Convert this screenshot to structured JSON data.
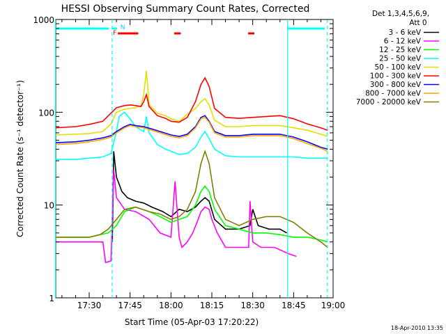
{
  "chart_data": {
    "type": "line",
    "title": "HESSI Observing Summary Count Rates, Corrected",
    "xlabel": "Start Time (05-Apr-03 17:20:22)",
    "ylabel": "Corrected Count Rate (s⁻¹ detector⁻¹)",
    "yscale": "log",
    "ylim": [
      1,
      1000
    ],
    "xlim_minutes": [
      17.3,
      118.0
    ],
    "x_units": "minutes after 17:20:22",
    "x_ticks": [
      {
        "minute": 30,
        "label": "17:30"
      },
      {
        "minute": 45,
        "label": "17:45"
      },
      {
        "minute": 60,
        "label": "18:00"
      },
      {
        "minute": 75,
        "label": "18:15"
      },
      {
        "minute": 90,
        "label": "18:30"
      },
      {
        "minute": 105,
        "label": "18:45"
      },
      {
        "minute": 120,
        "label": "19:00"
      }
    ],
    "y_ticks": [
      {
        "value": 1,
        "label": "1"
      },
      {
        "value": 10,
        "label": "10"
      },
      {
        "value": 100,
        "label": "100"
      },
      {
        "value": 1000,
        "label": "1000"
      }
    ],
    "legend_header": [
      "Det 1,3,4,5,6,9,",
      "Att 0"
    ],
    "legend_position": "right",
    "footer": "18-Apr-2010 13:35",
    "top_markers": [
      {
        "label": "F",
        "color": "#ff0000",
        "minute": 39.4
      },
      {
        "label": "N",
        "color": "#00d0ff",
        "minute": 42.3
      }
    ],
    "flags": {
      "red_bars": [
        [
          40.5,
          48.0
        ],
        [
          61.2,
          63.6
        ],
        [
          88.3,
          90.6
        ]
      ],
      "cyan_bars": [
        [
          17.3,
          37.2
        ],
        [
          38.3,
          40.2
        ],
        [
          102.8,
          117.5
        ]
      ]
    },
    "vlines": [
      {
        "minute": 17.6,
        "style": "solid",
        "color": "#00ffff"
      },
      {
        "minute": 38.4,
        "style": "dashed",
        "color": "#00ffff"
      },
      {
        "minute": 102.8,
        "style": "solid",
        "color": "#00ffff"
      },
      {
        "minute": 117.4,
        "style": "dashed",
        "color": "#00ffff"
      }
    ],
    "series": [
      {
        "name": "3 - 6 keV",
        "color": "#000000",
        "x": [
          38.5,
          39,
          40,
          42,
          44,
          47,
          50,
          53,
          57,
          60,
          63,
          66,
          69,
          71,
          72.5,
          74,
          76,
          80,
          85,
          89,
          90,
          92,
          96,
          100,
          102.5
        ],
        "y": [
          4,
          38,
          20,
          14,
          12,
          11,
          10.5,
          9.5,
          8.5,
          7.5,
          9,
          8.5,
          9.5,
          11,
          12,
          11,
          7,
          5.5,
          5.5,
          6,
          9,
          6,
          5.5,
          5.5,
          5
        ]
      },
      {
        "name": "6 - 12 keV",
        "color": "#ff00ff",
        "x": [
          17.5,
          35,
          36,
          38,
          39,
          40,
          43,
          47,
          52,
          56,
          60,
          61.5,
          63,
          64,
          66,
          68,
          70,
          71,
          72.5,
          74,
          75,
          77,
          80,
          85,
          88.5,
          89,
          90,
          93,
          98,
          103,
          106
        ],
        "y": [
          4,
          4,
          2.4,
          2.5,
          24,
          12,
          9,
          8.5,
          7,
          5,
          4.5,
          18,
          4.5,
          3.5,
          4,
          5,
          7,
          8.5,
          9.5,
          9,
          7,
          5,
          3.5,
          3.5,
          3.5,
          11,
          4,
          3.5,
          3.5,
          3,
          2.8
        ]
      },
      {
        "name": "12 - 25 keV",
        "color": "#00ff00",
        "x": [
          17.5,
          30,
          34,
          37,
          40,
          43,
          47,
          52,
          56,
          60,
          63,
          66,
          69,
          71,
          72.5,
          74,
          76,
          80,
          85,
          90,
          95,
          100,
          105,
          110,
          115,
          117.5
        ],
        "y": [
          4.5,
          4.5,
          4.8,
          5,
          6,
          8.5,
          9.5,
          8.5,
          7.5,
          6.5,
          7,
          7.5,
          10,
          14,
          16,
          14,
          9,
          6,
          5.5,
          5,
          5,
          4.8,
          4.5,
          4.5,
          4.2,
          4
        ]
      },
      {
        "name": "25 - 50 keV",
        "color": "#00ffff",
        "x": [
          17.5,
          25,
          30,
          35,
          38,
          40,
          41,
          42,
          43,
          45,
          47,
          50,
          51,
          52,
          55,
          58,
          60,
          63,
          66,
          69,
          71,
          72.5,
          74,
          76,
          80,
          85,
          90,
          95,
          100,
          105,
          110,
          115,
          117.5
        ],
        "y": [
          31,
          31,
          32,
          33,
          36,
          62,
          90,
          95,
          100,
          85,
          70,
          62,
          90,
          60,
          45,
          40,
          38,
          35,
          36,
          42,
          54,
          62,
          52,
          40,
          34,
          33,
          33,
          33,
          33,
          33,
          32,
          32,
          32
        ]
      },
      {
        "name": "50 - 100 keV",
        "color": "#e0e000",
        "x": [
          17.5,
          25,
          30,
          35,
          38,
          40,
          43,
          45,
          47,
          49,
          50,
          51,
          52,
          55,
          58,
          60,
          63,
          66,
          69,
          71,
          72.5,
          74,
          76,
          80,
          85,
          90,
          95,
          100,
          105,
          110,
          115,
          117.5
        ],
        "y": [
          57,
          58,
          59,
          62,
          75,
          100,
          108,
          110,
          112,
          118,
          155,
          280,
          120,
          98,
          92,
          85,
          80,
          95,
          110,
          130,
          140,
          120,
          82,
          70,
          70,
          72,
          72,
          72,
          68,
          64,
          58,
          55
        ]
      },
      {
        "name": "100 - 300 keV",
        "color": "#ff0000",
        "x": [
          17.5,
          25,
          30,
          35,
          38,
          40,
          43,
          45,
          47,
          49,
          50,
          51,
          52,
          55,
          58,
          60,
          63,
          66,
          69,
          71,
          72.5,
          74,
          76,
          80,
          85,
          90,
          95,
          100,
          105,
          110,
          115,
          117.5
        ],
        "y": [
          68,
          70,
          74,
          80,
          98,
          112,
          118,
          120,
          118,
          115,
          130,
          155,
          115,
          92,
          86,
          80,
          78,
          88,
          130,
          200,
          235,
          190,
          110,
          88,
          86,
          88,
          90,
          92,
          85,
          75,
          68,
          64
        ]
      },
      {
        "name": "300 - 800 keV",
        "color": "#0000ff",
        "x": [
          17.5,
          25,
          30,
          35,
          38,
          40,
          43,
          45,
          47,
          50,
          53,
          56,
          60,
          63,
          66,
          69,
          71,
          72.5,
          74,
          76,
          80,
          85,
          90,
          95,
          100,
          105,
          110,
          115,
          117.5
        ],
        "y": [
          47,
          48,
          50,
          53,
          56,
          62,
          70,
          74,
          72,
          70,
          66,
          62,
          57,
          55,
          58,
          70,
          88,
          92,
          80,
          62,
          56,
          56,
          58,
          58,
          58,
          54,
          48,
          42,
          40
        ]
      },
      {
        "name": "800 - 7000 keV",
        "color": "#ffa500",
        "x": [
          17.5,
          25,
          30,
          35,
          38,
          40,
          43,
          45,
          47,
          50,
          53,
          56,
          60,
          63,
          66,
          69,
          71,
          72.5,
          74,
          76,
          80,
          85,
          90,
          95,
          100,
          105,
          110,
          115,
          117.5
        ],
        "y": [
          45,
          46,
          48,
          51,
          54,
          60,
          68,
          72,
          70,
          68,
          64,
          60,
          55,
          53,
          56,
          68,
          85,
          88,
          78,
          60,
          54,
          54,
          56,
          56,
          56,
          52,
          46,
          41,
          38
        ]
      },
      {
        "name": "7000 - 20000 keV",
        "color": "#808000",
        "x": [
          17.5,
          30,
          34,
          37,
          40,
          43,
          47,
          52,
          56,
          60,
          63,
          66,
          69,
          71,
          72.5,
          74,
          76,
          80,
          85,
          90,
          95,
          100,
          105,
          110,
          115,
          117.5
        ],
        "y": [
          4.5,
          4.5,
          4.8,
          5.5,
          7,
          9,
          9.5,
          8.5,
          8,
          7,
          7.5,
          9,
          14,
          28,
          38,
          28,
          12,
          7,
          6,
          7,
          7.5,
          7.5,
          6.5,
          5,
          4,
          3.5
        ]
      }
    ]
  }
}
